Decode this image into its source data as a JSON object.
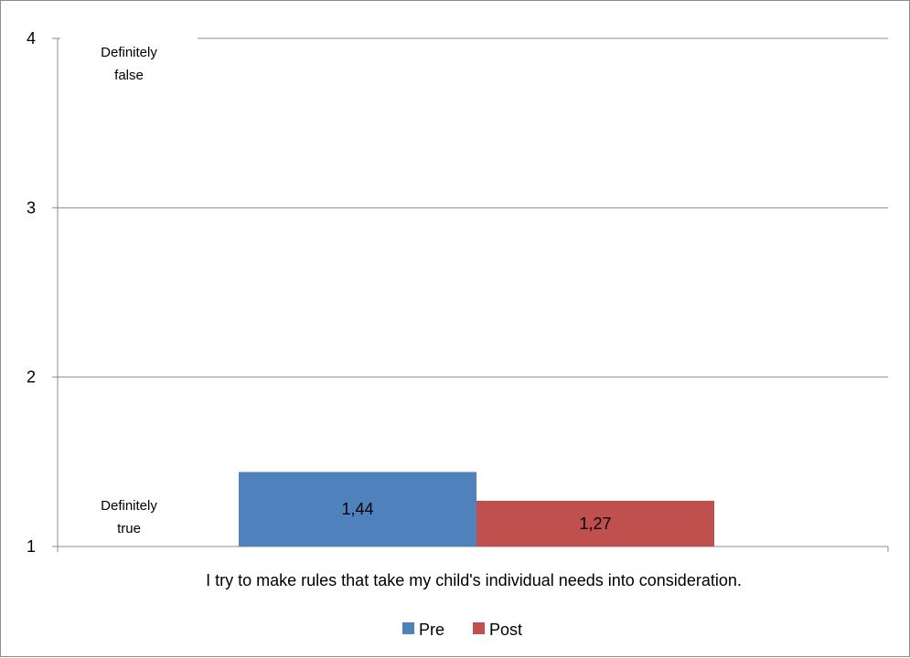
{
  "chart_data": {
    "type": "bar",
    "categories": [
      "I try to make rules that take my child's individual needs into consideration."
    ],
    "series": [
      {
        "name": "Pre",
        "values": [
          1.44
        ],
        "label": "1,44",
        "color": "#4f81bd"
      },
      {
        "name": "Post",
        "values": [
          1.27
        ],
        "label": "1,27",
        "color": "#c0504d"
      }
    ],
    "ylim": [
      1,
      4
    ],
    "yticks": [
      {
        "value": 1,
        "label": "1"
      },
      {
        "value": 2,
        "label": "2"
      },
      {
        "value": 3,
        "label": "3"
      },
      {
        "value": 4,
        "label": "4"
      }
    ],
    "annotations": {
      "top_line1": "Definitely",
      "top_line2": "false",
      "bottom_line1": "Definitely",
      "bottom_line2": "true"
    },
    "grid": true,
    "legend_position": "bottom",
    "colors": {
      "gridline": "#8c8c8c",
      "axis": "#8c8c8c"
    }
  }
}
